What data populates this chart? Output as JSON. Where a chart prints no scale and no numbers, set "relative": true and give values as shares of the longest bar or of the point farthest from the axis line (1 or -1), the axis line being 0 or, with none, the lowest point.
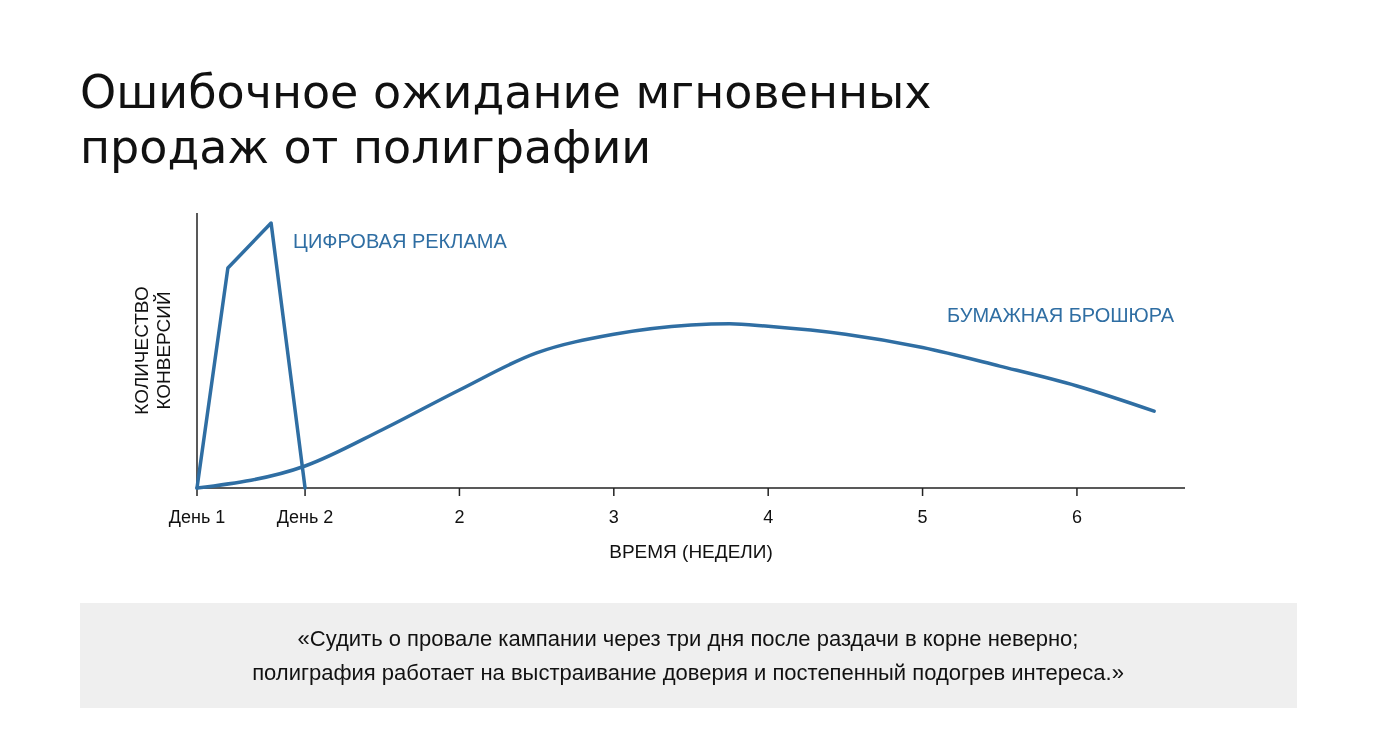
{
  "chart_data": {
    "type": "line",
    "title": "Ошибочное ожидание мгновенных продаж от полиграфии",
    "xlabel": "ВРЕМЯ (НЕДЕЛИ)",
    "ylabel": "КОЛИЧЕСТВО КОНВЕРСИЙ",
    "relative": true,
    "xlim": [
      0.3,
      6.7
    ],
    "xticks": [
      {
        "value": 0.3,
        "label": "День 1"
      },
      {
        "value": 1,
        "label": "День 2"
      },
      2,
      3,
      4,
      5,
      6
    ],
    "grid": false,
    "marker": "none",
    "line_style": "solid",
    "series": [
      {
        "name": "ЦИФРОВАЯ РЕКЛАМА",
        "color": "#2f6ea3",
        "x": [
          0.3,
          0.5,
          0.78,
          1.0
        ],
        "values": [
          0,
          0.83,
          1,
          0
        ]
      },
      {
        "name": "БУМАЖНАЯ БРОШЮРА",
        "color": "#2f6ea3",
        "x": [
          0.3,
          1,
          1.5,
          2,
          2.5,
          3,
          3.5,
          3.75,
          4,
          4.5,
          5,
          5.5,
          6,
          6.5
        ],
        "values": [
          0,
          0.083,
          0.22,
          0.37,
          0.51,
          0.58,
          0.615,
          0.62,
          0.61,
          0.58,
          0.53,
          0.46,
          0.385,
          0.29
        ]
      }
    ],
    "annotations": [
      "«Судить о провале кампании через три дня после раздачи в корне неверно; полиграфия работает на выстраивание доверия и постепенный подогрев интереса.»"
    ]
  }
}
